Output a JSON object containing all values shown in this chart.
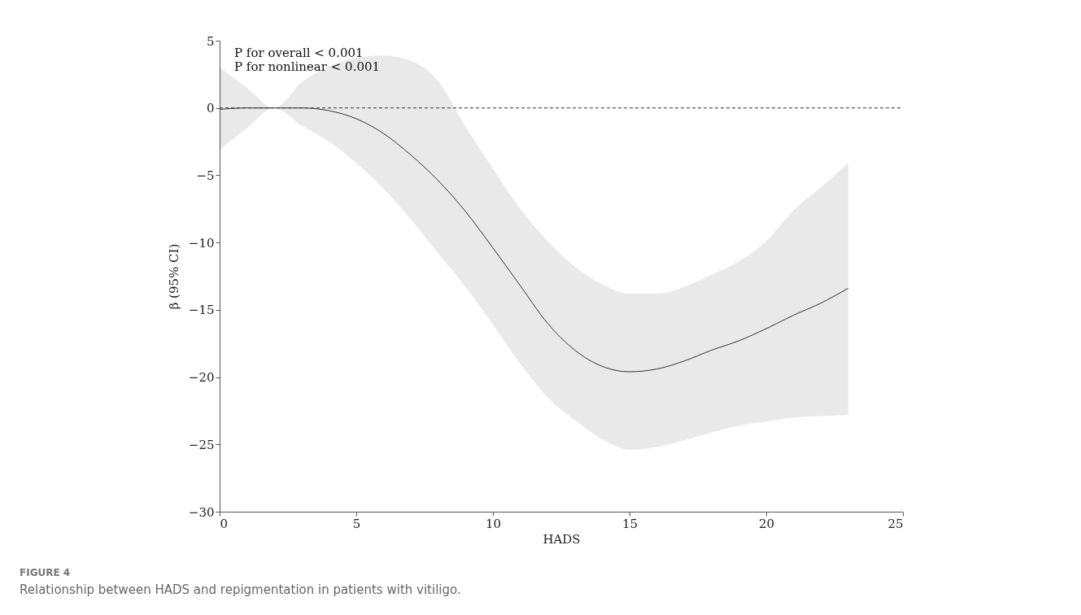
{
  "chart_data": {
    "type": "line",
    "xlabel": "HADS",
    "ylabel": "β (95% CI)",
    "annotations": [
      "P for overall < 0.001",
      "P for nonlinear < 0.001",
      "FIGURE 4",
      "Relationship between HADS and repigmentation in patients with vitiligo."
    ],
    "x": [
      0,
      1,
      2,
      3,
      4,
      5,
      6,
      7,
      8,
      9,
      10,
      11,
      12,
      13,
      14,
      15,
      16,
      17,
      18,
      19,
      20,
      21,
      22,
      23
    ],
    "series": [
      {
        "color": "#333333",
        "values": [
          -0.1,
          0,
          0,
          0,
          -0.2,
          -0.8,
          -1.9,
          -3.5,
          -5.4,
          -7.7,
          -10.4,
          -13.2,
          -16.0,
          -18.0,
          -19.2,
          -19.6,
          -19.4,
          -18.8,
          -18.0,
          -17.3,
          -16.4,
          -15.4,
          -14.5,
          -13.4
        ],
        "lower": [
          -3.1,
          -1.5,
          0,
          -1.3,
          -2.5,
          -4.1,
          -6.0,
          -8.3,
          -10.8,
          -13.3,
          -16.1,
          -19.0,
          -21.5,
          -23.2,
          -24.6,
          -25.4,
          -25.2,
          -24.7,
          -24.1,
          -23.6,
          -23.3,
          -23.0,
          -22.9,
          -22.8
        ],
        "upper": [
          3.0,
          1.5,
          0,
          1.9,
          3.1,
          3.7,
          3.9,
          3.5,
          2.0,
          -1.4,
          -4.5,
          -7.5,
          -9.9,
          -11.8,
          -13.1,
          -13.8,
          -13.8,
          -13.3,
          -12.4,
          -11.4,
          -9.9,
          -7.6,
          -5.9,
          -4.1
        ]
      }
    ],
    "xlim": [
      0,
      25
    ],
    "xticks": [
      0,
      5,
      10,
      15,
      20,
      25
    ],
    "ylim": [
      -30,
      5
    ],
    "yticks": [
      -30,
      -25,
      -20,
      -15,
      -10,
      -5,
      0,
      5
    ],
    "ref_lines": [
      {
        "axis": "y",
        "value": 0,
        "color": "#333333",
        "line_style": "dashed"
      }
    ],
    "marker": "none",
    "line_style": "solid"
  }
}
